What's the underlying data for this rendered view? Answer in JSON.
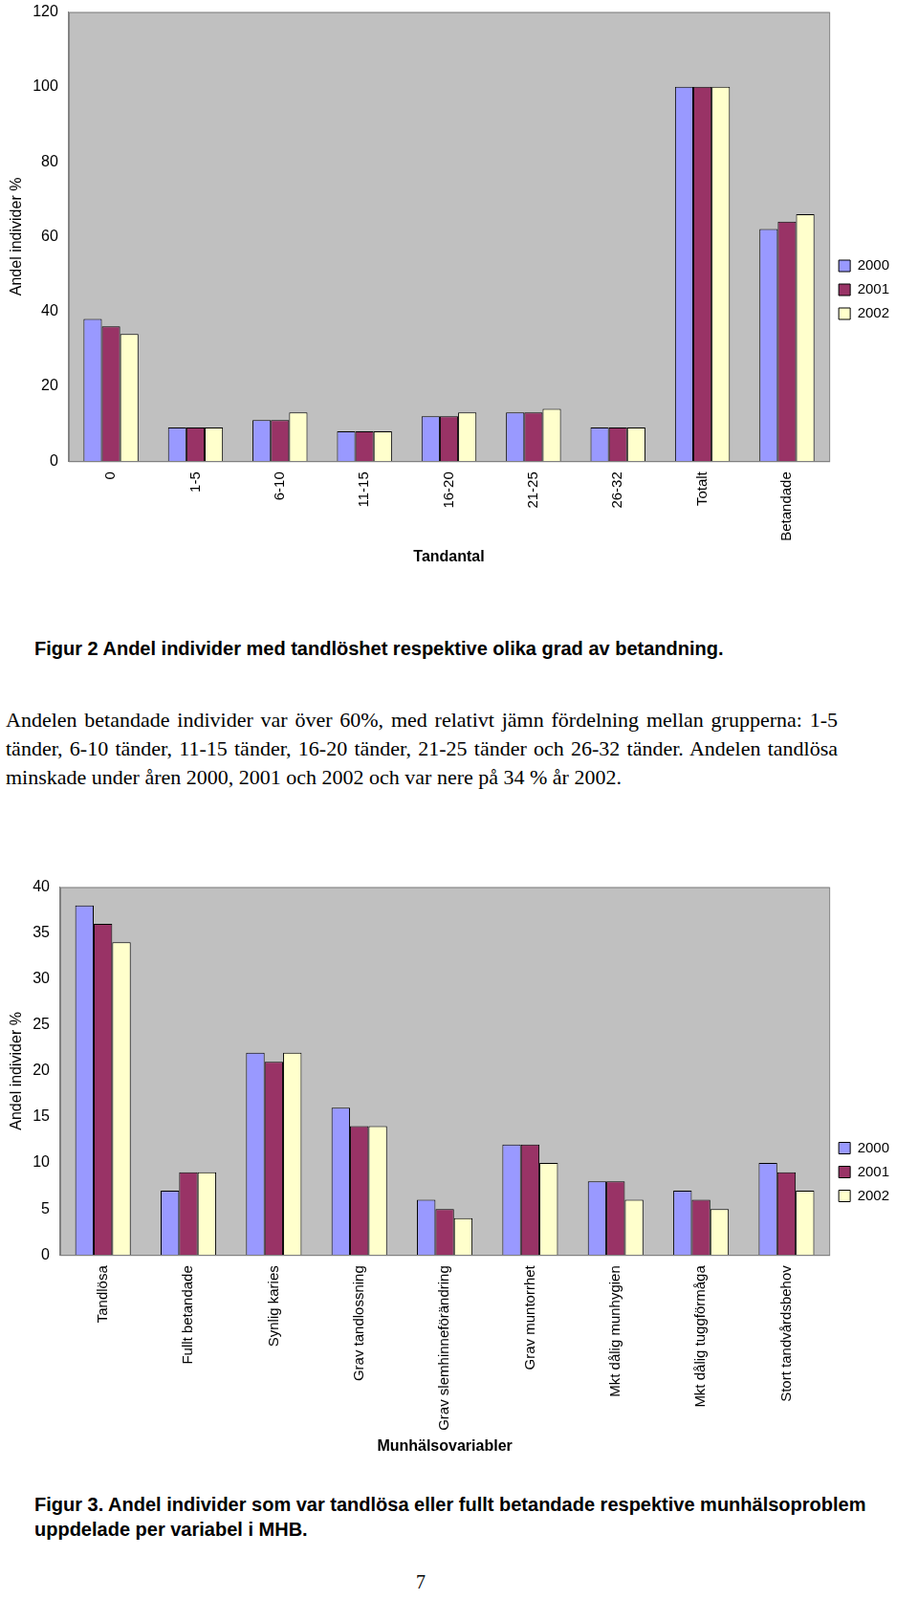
{
  "chart_data": [
    {
      "type": "bar",
      "x_label": "Tandantal",
      "y_label": "Andel individer %",
      "categories": [
        "0",
        "1-5",
        "6-10",
        "11-15",
        "16-20",
        "21-25",
        "26-32",
        "Totalt",
        "Betandade"
      ],
      "series": [
        {
          "name": "2000",
          "color": "#9999ff",
          "values": [
            38,
            9,
            11,
            8,
            12,
            13,
            9,
            100,
            62
          ]
        },
        {
          "name": "2001",
          "color": "#993366",
          "values": [
            36,
            9,
            11,
            8,
            12,
            13,
            9,
            100,
            64
          ]
        },
        {
          "name": "2002",
          "color": "#ffffcc",
          "values": [
            34,
            9,
            13,
            8,
            13,
            14,
            9,
            100,
            66
          ]
        }
      ],
      "ylim": [
        0,
        120
      ],
      "yticks": [
        0,
        20,
        40,
        60,
        80,
        100,
        120
      ],
      "grid": false,
      "legend": "right"
    },
    {
      "type": "bar",
      "x_label": "Munhälsovariabler",
      "y_label": "Andel individer %",
      "categories": [
        "Tandlösa",
        "Fullt betandade",
        "Synlig karies",
        "Grav tandlossning",
        "Grav slemhinneförändring",
        "Grav muntorrhet",
        "Mkt dålig munhygien",
        "Mkt dålig tuggförmåga",
        "Stort tandvårdsbehov"
      ],
      "series": [
        {
          "name": "2000",
          "color": "#9999ff",
          "values": [
            38,
            7,
            22,
            16,
            6,
            12,
            8,
            7,
            10
          ]
        },
        {
          "name": "2001",
          "color": "#993366",
          "values": [
            36,
            9,
            21,
            14,
            5,
            12,
            8,
            6,
            9
          ]
        },
        {
          "name": "2002",
          "color": "#ffffcc",
          "values": [
            34,
            9,
            22,
            14,
            4,
            10,
            6,
            5,
            7
          ]
        }
      ],
      "ylim": [
        0,
        40
      ],
      "yticks": [
        0,
        5,
        10,
        15,
        20,
        25,
        30,
        35,
        40
      ],
      "grid": false,
      "legend": "right"
    }
  ],
  "document": {
    "figure_2_caption": "Figur 2 Andel individer med tandlöshet respektive olika grad av betandning.",
    "paragraph": "Andelen betandade individer var över 60%, med relativt jämn fördelning mellan grupperna: 1-5 tänder, 6-10 tänder, 11-15 tänder, 16-20 tänder, 21-25 tänder och 26-32 tänder. Andelen tandlösa minskade under åren 2000, 2001 och 2002 och var nere på 34 % år 2002.",
    "figure_3_caption": "Figur 3. Andel individer som var tandlösa eller fullt betandade respektive munhälsoproblem uppdelade per variabel i MHB.",
    "page_number": "7"
  }
}
